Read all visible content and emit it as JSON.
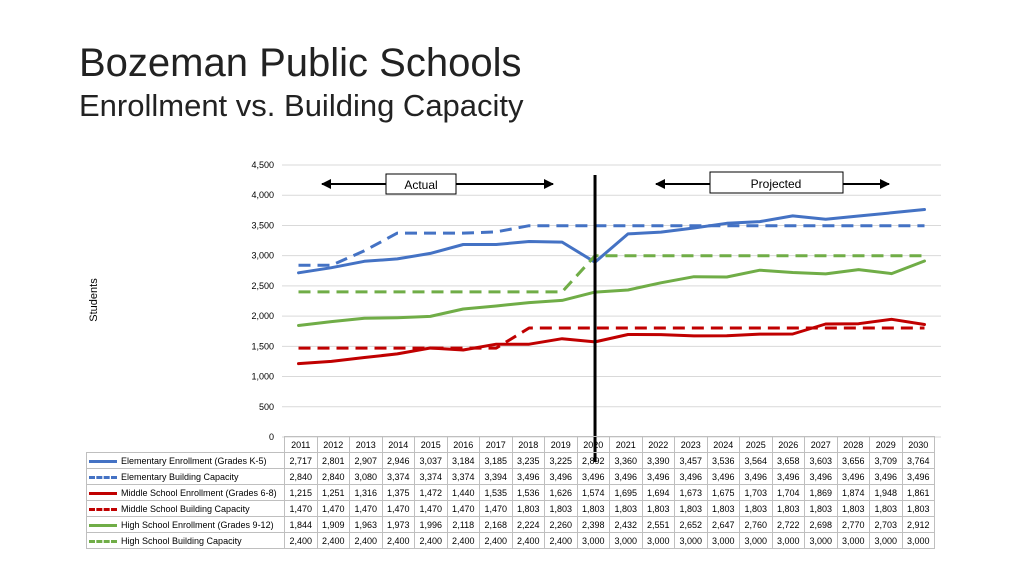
{
  "header": {
    "title": "Bozeman Public Schools",
    "subtitle": "Enrollment vs. Building Capacity"
  },
  "chart_data": {
    "type": "line",
    "title": "Bozeman Public Schools",
    "subtitle": "Enrollment vs. Building Capacity",
    "ylabel": "Students",
    "xlabel": "",
    "ylim": [
      0,
      4500
    ],
    "yticks": [
      "0",
      "500",
      "1,000",
      "1,500",
      "2,000",
      "2,500",
      "3,000",
      "3,500",
      "4,000",
      "4,500"
    ],
    "x": [
      "2011",
      "2012",
      "2013",
      "2014",
      "2015",
      "2016",
      "2017",
      "2018",
      "2019",
      "2020",
      "2021",
      "2022",
      "2023",
      "2024",
      "2025",
      "2026",
      "2027",
      "2028",
      "2029",
      "2030"
    ],
    "grid": true,
    "annotations": {
      "actual_label": "Actual",
      "projected_label": "Projected",
      "divider_year": "2020"
    },
    "series": [
      {
        "name": "Elementary Enrollment (Grades K-5)",
        "color": "#4472c4",
        "dash": "solid",
        "values": [
          2717,
          2801,
          2907,
          2946,
          3037,
          3184,
          3185,
          3235,
          3225,
          2892,
          3360,
          3390,
          3457,
          3536,
          3564,
          3658,
          3603,
          3656,
          3709,
          3764
        ],
        "labels": [
          "2,717",
          "2,801",
          "2,907",
          "2,946",
          "3,037",
          "3,184",
          "3,185",
          "3,235",
          "3,225",
          "2,892",
          "3,360",
          "3,390",
          "3,457",
          "3,536",
          "3,564",
          "3,658",
          "3,603",
          "3,656",
          "3,709",
          "3,764"
        ]
      },
      {
        "name": "Elementary Building Capacity",
        "color": "#4472c4",
        "dash": "dashed",
        "values": [
          2840,
          2840,
          3080,
          3374,
          3374,
          3374,
          3394,
          3496,
          3496,
          3496,
          3496,
          3496,
          3496,
          3496,
          3496,
          3496,
          3496,
          3496,
          3496,
          3496
        ],
        "labels": [
          "2,840",
          "2,840",
          "3,080",
          "3,374",
          "3,374",
          "3,374",
          "3,394",
          "3,496",
          "3,496",
          "3,496",
          "3,496",
          "3,496",
          "3,496",
          "3,496",
          "3,496",
          "3,496",
          "3,496",
          "3,496",
          "3,496",
          "3,496"
        ]
      },
      {
        "name": "Middle School Enrollment (Grades 6-8)",
        "color": "#c00000",
        "dash": "solid",
        "values": [
          1215,
          1251,
          1316,
          1375,
          1472,
          1440,
          1535,
          1536,
          1626,
          1574,
          1695,
          1694,
          1673,
          1675,
          1703,
          1704,
          1869,
          1874,
          1948,
          1861
        ],
        "labels": [
          "1,215",
          "1,251",
          "1,316",
          "1,375",
          "1,472",
          "1,440",
          "1,535",
          "1,536",
          "1,626",
          "1,574",
          "1,695",
          "1,694",
          "1,673",
          "1,675",
          "1,703",
          "1,704",
          "1,869",
          "1,874",
          "1,948",
          "1,861"
        ]
      },
      {
        "name": "Middle School Building Capacity",
        "color": "#c00000",
        "dash": "dashed",
        "values": [
          1470,
          1470,
          1470,
          1470,
          1470,
          1470,
          1470,
          1803,
          1803,
          1803,
          1803,
          1803,
          1803,
          1803,
          1803,
          1803,
          1803,
          1803,
          1803,
          1803
        ],
        "labels": [
          "1,470",
          "1,470",
          "1,470",
          "1,470",
          "1,470",
          "1,470",
          "1,470",
          "1,803",
          "1,803",
          "1,803",
          "1,803",
          "1,803",
          "1,803",
          "1,803",
          "1,803",
          "1,803",
          "1,803",
          "1,803",
          "1,803",
          "1,803"
        ]
      },
      {
        "name": "High School Enrollment (Grades 9-12)",
        "color": "#70ad47",
        "dash": "solid",
        "values": [
          1844,
          1909,
          1963,
          1973,
          1996,
          2118,
          2168,
          2224,
          2260,
          2398,
          2432,
          2551,
          2652,
          2647,
          2760,
          2722,
          2698,
          2770,
          2703,
          2912
        ],
        "labels": [
          "1,844",
          "1,909",
          "1,963",
          "1,973",
          "1,996",
          "2,118",
          "2,168",
          "2,224",
          "2,260",
          "2,398",
          "2,432",
          "2,551",
          "2,652",
          "2,647",
          "2,760",
          "2,722",
          "2,698",
          "2,770",
          "2,703",
          "2,912"
        ]
      },
      {
        "name": "High School Building Capacity",
        "color": "#70ad47",
        "dash": "dashed",
        "values": [
          2400,
          2400,
          2400,
          2400,
          2400,
          2400,
          2400,
          2400,
          2400,
          3000,
          3000,
          3000,
          3000,
          3000,
          3000,
          3000,
          3000,
          3000,
          3000,
          3000
        ],
        "labels": [
          "2,400",
          "2,400",
          "2,400",
          "2,400",
          "2,400",
          "2,400",
          "2,400",
          "2,400",
          "2,400",
          "3,000",
          "3,000",
          "3,000",
          "3,000",
          "3,000",
          "3,000",
          "3,000",
          "3,000",
          "3,000",
          "3,000",
          "3,000"
        ]
      }
    ]
  }
}
